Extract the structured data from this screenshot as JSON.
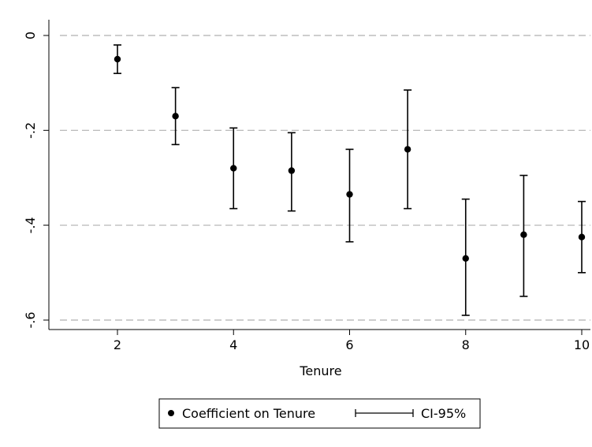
{
  "chart_data": {
    "type": "scatter",
    "subtype": "coefficient-plot-with-error-bars",
    "xlabel": "Tenure",
    "ylabel": "",
    "x_ticks": [
      2,
      4,
      6,
      8,
      10
    ],
    "x_tick_labels": [
      "2",
      "4",
      "6",
      "8",
      "10"
    ],
    "y_ticks": [
      0,
      -0.2,
      -0.4,
      -0.6
    ],
    "y_tick_labels": [
      "0",
      "-.2",
      "-.4",
      "-.6"
    ],
    "xlim": [
      0.8,
      10.0
    ],
    "ylim": [
      -0.62,
      0.0
    ],
    "grid": "horizontal dashed lines at y ticks",
    "legend_position": "bottom-center",
    "series": [
      {
        "name": "Coefficient on Tenure",
        "marker": "filled-circle",
        "points": [
          {
            "x": 2,
            "y": -0.05,
            "ci_low": -0.08,
            "ci_high": -0.02
          },
          {
            "x": 3,
            "y": -0.17,
            "ci_low": -0.23,
            "ci_high": -0.11
          },
          {
            "x": 4,
            "y": -0.28,
            "ci_low": -0.365,
            "ci_high": -0.195
          },
          {
            "x": 5,
            "y": -0.285,
            "ci_low": -0.37,
            "ci_high": -0.205
          },
          {
            "x": 6,
            "y": -0.335,
            "ci_low": -0.435,
            "ci_high": -0.24
          },
          {
            "x": 7,
            "y": -0.24,
            "ci_low": -0.365,
            "ci_high": -0.115
          },
          {
            "x": 8,
            "y": -0.47,
            "ci_low": -0.59,
            "ci_high": -0.345
          },
          {
            "x": 9,
            "y": -0.42,
            "ci_low": -0.55,
            "ci_high": -0.295
          },
          {
            "x": 10,
            "y": -0.425,
            "ci_low": -0.5,
            "ci_high": -0.35
          }
        ]
      }
    ],
    "legend": {
      "point_label": "Coefficient on Tenure",
      "ci_label": "CI-95%"
    },
    "colors": {
      "marker": "#000000",
      "errorbar": "#000000",
      "grid": "#b0b0b0",
      "axis": "#000000",
      "background": "#ffffff"
    }
  }
}
